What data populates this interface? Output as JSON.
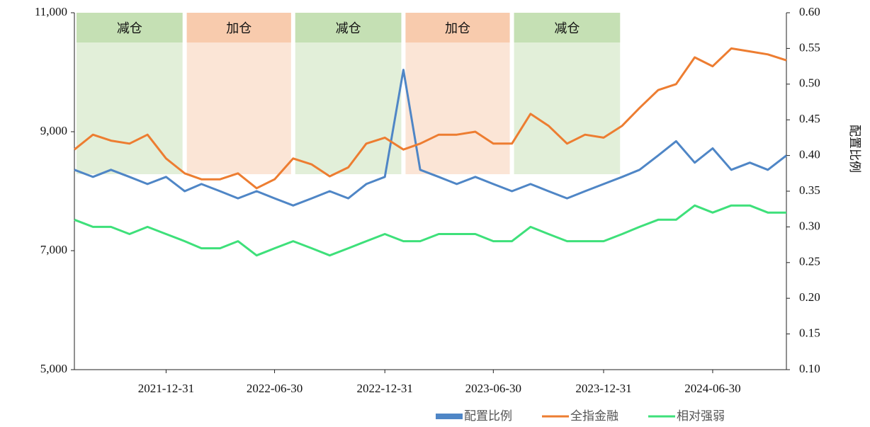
{
  "chart_data": {
    "type": "line",
    "y2_label": "配置比例",
    "xlim": [
      "2021-07-31",
      "2024-10-31"
    ],
    "xticks": [
      "2021-12-31",
      "2022-06-30",
      "2022-12-31",
      "2023-06-30",
      "2023-12-31",
      "2024-06-30"
    ],
    "ylim": [
      5000,
      11000
    ],
    "yticks": [
      {
        "value": 5000,
        "label": "5,000"
      },
      {
        "value": 7000,
        "label": "7,000"
      },
      {
        "value": 9000,
        "label": "9,000"
      },
      {
        "value": 11000,
        "label": "11,000"
      }
    ],
    "y2lim": [
      0.1,
      0.6
    ],
    "y2ticks": [
      {
        "value": 0.1,
        "label": "0.10"
      },
      0.15,
      {
        "value": 0.2,
        "label": "0.20"
      },
      0.25,
      {
        "value": 0.3,
        "label": "0.30"
      },
      0.35,
      {
        "value": 0.4,
        "label": "0.40"
      },
      0.45,
      {
        "value": 0.5,
        "label": "0.50"
      },
      0.55,
      {
        "value": 0.6,
        "label": "0.60"
      }
    ],
    "regions": [
      {
        "start": "2021-07-31",
        "end": "2022-01-31",
        "label": "减仓",
        "color": "#c5e0b4"
      },
      {
        "start": "2022-01-31",
        "end": "2022-07-31",
        "label": "加仓",
        "color": "#f8cbad"
      },
      {
        "start": "2022-07-31",
        "end": "2023-01-31",
        "label": "减仓",
        "color": "#c5e0b4"
      },
      {
        "start": "2023-01-31",
        "end": "2023-07-31",
        "label": "加仓",
        "color": "#f8cbad"
      },
      {
        "start": "2023-07-31",
        "end": "2024-01-31",
        "label": "减仓",
        "color": "#c5e0b4"
      }
    ],
    "x": [
      "2021-07-31",
      "2021-08-31",
      "2021-09-30",
      "2021-10-31",
      "2021-11-30",
      "2021-12-31",
      "2022-01-31",
      "2022-02-28",
      "2022-03-31",
      "2022-04-30",
      "2022-05-31",
      "2022-06-30",
      "2022-07-31",
      "2022-08-31",
      "2022-09-30",
      "2022-10-31",
      "2022-11-30",
      "2022-12-31",
      "2023-01-31",
      "2023-02-28",
      "2023-03-31",
      "2023-04-30",
      "2023-05-31",
      "2023-06-30",
      "2023-07-31",
      "2023-08-31",
      "2023-09-30",
      "2023-10-31",
      "2023-11-30",
      "2023-12-31",
      "2024-01-31",
      "2024-02-29",
      "2024-03-31",
      "2024-04-30",
      "2024-05-31",
      "2024-06-30",
      "2024-07-31",
      "2024-08-31",
      "2024-09-30",
      "2024-10-31"
    ],
    "series": [
      {
        "name": "配置比例",
        "color": "#4f86c6",
        "axis": "y2",
        "values": [
          0.38,
          0.37,
          0.38,
          0.37,
          0.36,
          0.37,
          0.35,
          0.36,
          0.35,
          0.34,
          0.35,
          0.34,
          0.33,
          0.34,
          0.35,
          0.34,
          0.36,
          0.37,
          0.52,
          0.38,
          0.37,
          0.36,
          0.37,
          0.36,
          0.35,
          0.36,
          0.35,
          0.34,
          0.35,
          0.36,
          0.37,
          0.38,
          0.4,
          0.42,
          0.39,
          0.41,
          0.38,
          0.39,
          0.38,
          0.4
        ]
      },
      {
        "name": "全指金融",
        "color": "#ed7d31",
        "values": [
          8700,
          8950,
          8850,
          8800,
          8950,
          8550,
          8300,
          8200,
          8200,
          8300,
          8050,
          8200,
          8550,
          8450,
          8250,
          8400,
          8800,
          8900,
          8700,
          8800,
          8950,
          8950,
          9000,
          8800,
          8800,
          9300,
          9100,
          8800,
          8950,
          8900,
          9100,
          9400,
          9700,
          9800,
          10250,
          10100,
          10400,
          10350,
          10300,
          10200
        ]
      },
      {
        "name": "相对强弱",
        "color": "#3ee07a",
        "axis": "y2",
        "values": [
          0.31,
          0.3,
          0.3,
          0.29,
          0.3,
          0.29,
          0.28,
          0.27,
          0.27,
          0.28,
          0.26,
          0.27,
          0.28,
          0.27,
          0.26,
          0.27,
          0.28,
          0.29,
          0.28,
          0.28,
          0.29,
          0.29,
          0.29,
          0.28,
          0.28,
          0.3,
          0.29,
          0.28,
          0.28,
          0.28,
          0.29,
          0.3,
          0.31,
          0.31,
          0.33,
          0.32,
          0.33,
          0.33,
          0.32,
          0.32
        ]
      }
    ]
  }
}
